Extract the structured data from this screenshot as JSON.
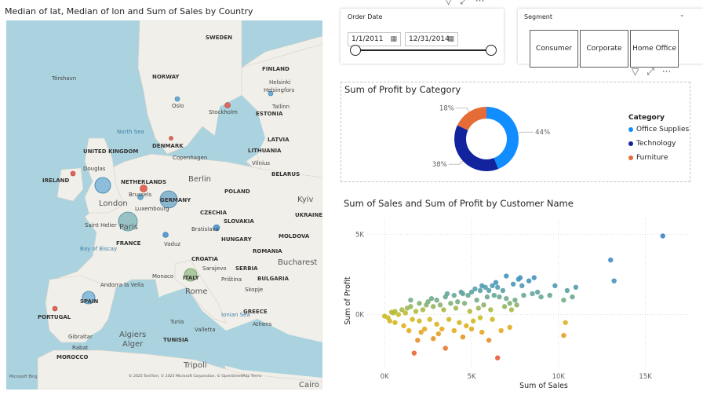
{
  "map": {
    "title": "Median of lat, Median of lon and Sum of Sales by Country",
    "labels": {
      "sweden": "SWEDEN",
      "finland": "FINLAND",
      "norway": "NORWAY",
      "torshavn": "Tórshavn",
      "helsinki": "Helsinki",
      "helsingfors": "Helsingfors",
      "oslo": "Oslo",
      "stockholm": "Stockholm",
      "tallinn": "Tallinn",
      "estonia": "ESTONIA",
      "north_sea": "North Sea",
      "latvia": "LATVIA",
      "denmark": "DENMARK",
      "copenhagen": "Copenhagen",
      "lithuania": "LITHUANIA",
      "vilnius": "Vilnius",
      "united_kingdom": "UNITED KINGDOM",
      "douglas": "Douglas",
      "ireland": "IRELAND",
      "netherlands": "NETHERLANDS",
      "berlin": "Berlin",
      "belarus": "BELARUS",
      "brussels": "Brussels",
      "poland": "POLAND",
      "london": "London",
      "germany": "GERMANY",
      "luxembourg": "Luxembourg",
      "kyiv": "Kyiv",
      "czechia": "CZECHIA",
      "ukraine": "UKRAINE",
      "saint_helier": "Saint Helier",
      "paris": "Paris",
      "slovakia": "SLOVAKIA",
      "bratislava": "Bratislava",
      "moldova": "MOLDOVA",
      "hungary": "HUNGARY",
      "bay_of_biscay": "Bay of Biscay",
      "france": "FRANCE",
      "vaduz": "Vaduz",
      "romania": "ROMANIA",
      "croatia": "CROATIA",
      "bucharest": "Bucharest",
      "monaco": "Monaco",
      "sarajevo": "Sarajevo",
      "serbia": "SERBIA",
      "andorra": "Andorra la Vella",
      "italy": "ITALY",
      "pristina": "Priština",
      "bulgaria": "BULGARIA",
      "rome": "Rome",
      "skopje": "Skopje",
      "spain": "SPAIN",
      "portugal": "PORTUGAL",
      "ionian": "Ionian Sea",
      "greece": "GREECE",
      "athens": "Athens",
      "tunis": "Tunis",
      "valletta": "Valletta",
      "gibraltar": "Gibraltar",
      "algiers": "Algiers",
      "alger": "Alger",
      "tunisia": "TUNISIA",
      "rabat": "Rabat",
      "morocco": "MOROCCO",
      "tripoli": "Tripoli",
      "cairo": "Cairo"
    },
    "attribution": "© 2025 TomTom, © 2025 Microsoft Corporation, © OpenStreetMap  Terms",
    "logo": "Microsoft Bing",
    "colors": {
      "water": "#aad3df",
      "land": "#f1efe9",
      "bubble_blue": "#6aaed6",
      "bubble_red": "#e3665b",
      "bubble_green": "#9abf8c",
      "bubble_teal": "#79b3b8"
    }
  },
  "date_slicer": {
    "label": "Order Date",
    "start": "1/1/2011",
    "end": "12/31/2014",
    "calendar_icon": "calendar-icon"
  },
  "segment_slicer": {
    "label": "Segment",
    "options": [
      "Consumer",
      "Corporate",
      "Home Office"
    ]
  },
  "header_icons": {
    "filter": "▽",
    "focus": "⤢",
    "more": "···"
  },
  "donut": {
    "title": "Sum of Profit by Category",
    "legend_title": "Category",
    "chart_data": {
      "type": "pie",
      "title": "Sum of Profit by Category",
      "categories": [
        "Office Supplies",
        "Technology",
        "Furniture"
      ],
      "values": [
        44,
        38,
        18
      ],
      "labels": [
        "44%",
        "38%",
        "18%"
      ],
      "colors": [
        "#118dff",
        "#12239e",
        "#e66c37"
      ]
    }
  },
  "scatter": {
    "title": "Sum of Sales and Sum of Profit by Customer Name",
    "chart_data": {
      "type": "scatter",
      "title": "Sum of Sales and Sum of Profit by Customer Name",
      "xlabel": "Sum of Sales",
      "ylabel": "Sum of Profit",
      "x_ticks": [
        "0K",
        "5K",
        "10K",
        "15K"
      ],
      "y_ticks": [
        "0K",
        "5K"
      ],
      "xlim": [
        -1000,
        17500
      ],
      "ylim": [
        -3300,
        6000
      ],
      "points": [
        [
          16000,
          4900
        ],
        [
          13000,
          3400
        ],
        [
          13200,
          2100
        ],
        [
          11000,
          1700
        ],
        [
          10500,
          1500
        ],
        [
          9800,
          1800
        ],
        [
          10800,
          1100
        ],
        [
          10300,
          900
        ],
        [
          10400,
          -500
        ],
        [
          10300,
          -1300
        ],
        [
          9500,
          1200
        ],
        [
          9000,
          1100
        ],
        [
          8800,
          1400
        ],
        [
          8500,
          1300
        ],
        [
          8000,
          1200
        ],
        [
          7500,
          900
        ],
        [
          7200,
          700
        ],
        [
          7000,
          1000
        ],
        [
          6800,
          1500
        ],
        [
          7700,
          2200
        ],
        [
          7800,
          2300
        ],
        [
          8600,
          2300
        ],
        [
          8300,
          2100
        ],
        [
          7400,
          1900
        ],
        [
          6500,
          1700
        ],
        [
          7200,
          -800
        ],
        [
          6700,
          -1000
        ],
        [
          6500,
          -2700
        ],
        [
          6000,
          -1600
        ],
        [
          5600,
          -1100
        ],
        [
          5000,
          -900
        ],
        [
          4500,
          -1400
        ],
        [
          3500,
          -2100
        ],
        [
          2800,
          -1500
        ],
        [
          1900,
          -1600
        ],
        [
          1700,
          -2400
        ],
        [
          1400,
          -1000
        ],
        [
          1100,
          -700
        ],
        [
          600,
          -500
        ],
        [
          300,
          -400
        ],
        [
          200,
          -200
        ],
        [
          0,
          -100
        ],
        [
          500,
          100
        ],
        [
          1000,
          300
        ],
        [
          1500,
          500
        ],
        [
          2000,
          700
        ],
        [
          2500,
          800
        ],
        [
          3000,
          900
        ],
        [
          3500,
          1100
        ],
        [
          4000,
          1200
        ],
        [
          4500,
          1300
        ],
        [
          5000,
          1400
        ],
        [
          5500,
          1500
        ],
        [
          6000,
          1500
        ],
        [
          6200,
          1800
        ],
        [
          5800,
          1700
        ],
        [
          5200,
          1600
        ],
        [
          4800,
          1200
        ],
        [
          4200,
          800
        ],
        [
          3800,
          700
        ],
        [
          3200,
          600
        ],
        [
          2800,
          500
        ],
        [
          2200,
          300
        ],
        [
          1800,
          200
        ],
        [
          1200,
          100
        ],
        [
          800,
          0
        ],
        [
          600,
          200
        ],
        [
          400,
          150
        ],
        [
          1300,
          400
        ],
        [
          2400,
          600
        ],
        [
          3400,
          300
        ],
        [
          4100,
          400
        ],
        [
          4600,
          700
        ],
        [
          5300,
          900
        ],
        [
          5900,
          1100
        ],
        [
          6300,
          1200
        ],
        [
          6600,
          1100
        ],
        [
          3700,
          -300
        ],
        [
          4300,
          -500
        ],
        [
          2600,
          -300
        ],
        [
          3000,
          -600
        ],
        [
          2000,
          -400
        ],
        [
          1600,
          -300
        ],
        [
          2300,
          -900
        ],
        [
          3300,
          -900
        ],
        [
          4900,
          200
        ],
        [
          5400,
          400
        ],
        [
          5700,
          600
        ],
        [
          6100,
          300
        ],
        [
          6900,
          500
        ],
        [
          7300,
          300
        ],
        [
          7600,
          600
        ],
        [
          4000,
          -1000
        ],
        [
          3100,
          -1200
        ],
        [
          2100,
          -1100
        ],
        [
          5100,
          -400
        ],
        [
          5500,
          -200
        ],
        [
          6200,
          -300
        ],
        [
          4700,
          -700
        ],
        [
          1500,
          900
        ],
        [
          2700,
          1000
        ],
        [
          3600,
          1300
        ],
        [
          4400,
          1400
        ],
        [
          5600,
          1800
        ],
        [
          6400,
          2000
        ],
        [
          7000,
          2400
        ],
        [
          7900,
          1800
        ]
      ]
    }
  }
}
